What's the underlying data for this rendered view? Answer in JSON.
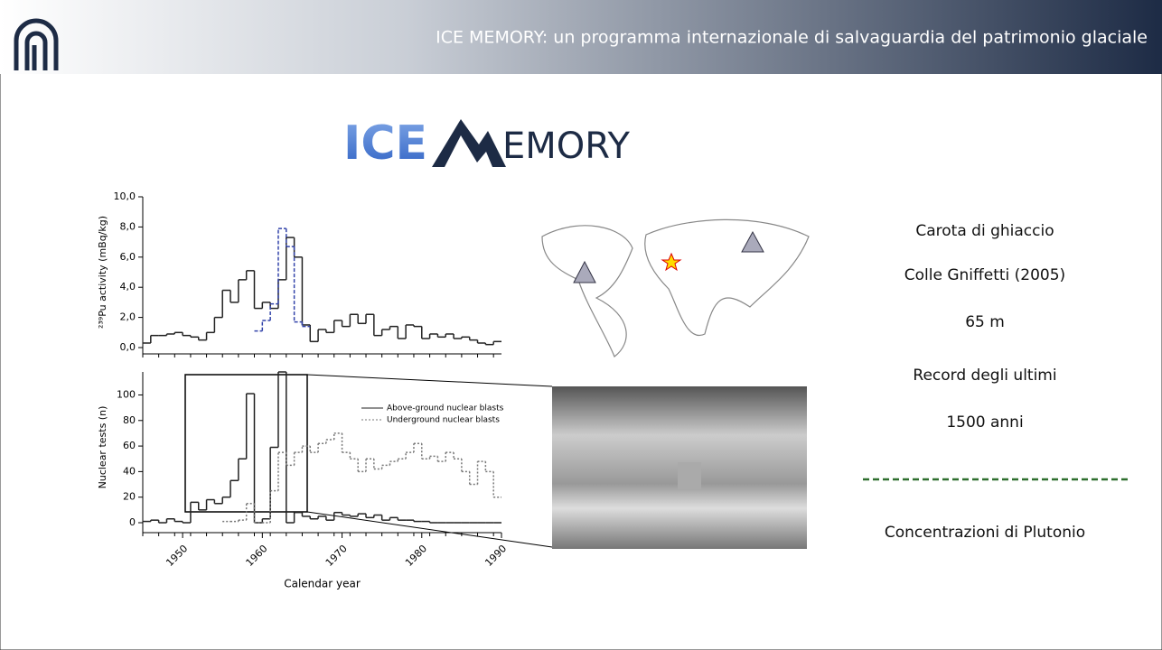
{
  "header": {
    "title": "ICE MEMORY: un programma internazionale di salvaguardia del patrimonio glaciale"
  },
  "logo": {
    "part1": "ICE",
    "part2": "EMORY"
  },
  "chart_data": [
    {
      "type": "step",
      "ylabel": "²³⁹Pu activity (mBq/kg)",
      "xlim": [
        1945,
        1990
      ],
      "ylim": [
        0,
        10
      ],
      "yticks": [
        {
          "value": 0,
          "label": "0,0"
        },
        {
          "value": 2,
          "label": "2,0"
        },
        {
          "value": 4,
          "label": "4,0"
        },
        {
          "value": 6,
          "label": "6,0"
        },
        {
          "value": 8,
          "label": "8,0"
        },
        {
          "value": 10,
          "label": "10,0"
        }
      ],
      "series": [
        {
          "color": "#222222",
          "style": "solid",
          "x": [
            1945,
            1946,
            1947,
            1948,
            1949,
            1950,
            1951,
            1952,
            1953,
            1954,
            1955,
            1956,
            1957,
            1958,
            1959,
            1960,
            1961,
            1962,
            1963,
            1964,
            1965,
            1966,
            1967,
            1968,
            1969,
            1970,
            1971,
            1972,
            1973,
            1974,
            1975,
            1976,
            1977,
            1978,
            1979,
            1980,
            1981,
            1982,
            1983,
            1984,
            1985,
            1986,
            1987,
            1988,
            1989
          ],
          "values": [
            0.3,
            0.8,
            0.8,
            0.9,
            1.0,
            0.8,
            0.7,
            0.5,
            1.0,
            2.0,
            3.8,
            3.0,
            4.5,
            5.1,
            2.6,
            3.0,
            2.6,
            4.5,
            7.3,
            6.0,
            1.5,
            0.4,
            1.2,
            1.0,
            1.8,
            1.4,
            2.2,
            1.6,
            2.2,
            0.8,
            1.2,
            1.4,
            0.6,
            1.5,
            1.4,
            0.6,
            0.9,
            0.7,
            0.9,
            0.6,
            0.7,
            0.5,
            0.3,
            0.2,
            0.4
          ]
        },
        {
          "color": "#3344aa",
          "style": "dashed",
          "x": [
            1959,
            1960,
            1961,
            1962,
            1963,
            1964,
            1965
          ],
          "values": [
            1.1,
            1.8,
            2.9,
            7.9,
            6.7,
            1.7,
            1.4
          ]
        }
      ]
    },
    {
      "type": "step",
      "ylabel": "Nuclear tests (n)",
      "xlabel": "Calendar year",
      "xlim": [
        1945,
        1990
      ],
      "ylim": [
        0,
        118
      ],
      "yticks": [
        0,
        20,
        40,
        60,
        80,
        100
      ],
      "xticks": [
        1950,
        1960,
        1970,
        1980,
        1990
      ],
      "series": [
        {
          "name": "Above-ground nuclear blasts",
          "color": "#222222",
          "style": "solid",
          "x": [
            1945,
            1946,
            1947,
            1948,
            1949,
            1950,
            1951,
            1952,
            1953,
            1954,
            1955,
            1956,
            1957,
            1958,
            1959,
            1960,
            1961,
            1962,
            1963,
            1964,
            1965,
            1966,
            1967,
            1968,
            1969,
            1970,
            1971,
            1972,
            1973,
            1974,
            1975,
            1976,
            1977,
            1978,
            1979,
            1980,
            1981,
            1982,
            1983,
            1984,
            1985,
            1986,
            1987,
            1988,
            1989
          ],
          "values": [
            1,
            2,
            0,
            3,
            1,
            0,
            16,
            10,
            18,
            15,
            20,
            33,
            50,
            101,
            0,
            3,
            59,
            118,
            0,
            8,
            5,
            3,
            5,
            2,
            8,
            6,
            5,
            7,
            4,
            6,
            2,
            4,
            2,
            2,
            1,
            1,
            0,
            0,
            0,
            0,
            0,
            0,
            0,
            0,
            0
          ]
        },
        {
          "name": "Underground nuclear blasts",
          "color": "#777777",
          "style": "dotted",
          "x": [
            1955,
            1956,
            1957,
            1958,
            1959,
            1960,
            1961,
            1962,
            1963,
            1964,
            1965,
            1966,
            1967,
            1968,
            1969,
            1970,
            1971,
            1972,
            1973,
            1974,
            1975,
            1976,
            1977,
            1978,
            1979,
            1980,
            1981,
            1982,
            1983,
            1984,
            1985,
            1986,
            1987,
            1988,
            1989
          ],
          "values": [
            1,
            1,
            2,
            15,
            0,
            0,
            25,
            55,
            45,
            55,
            60,
            55,
            62,
            65,
            70,
            55,
            50,
            40,
            50,
            42,
            45,
            48,
            50,
            55,
            62,
            50,
            52,
            48,
            55,
            50,
            40,
            30,
            48,
            40,
            20
          ]
        }
      ]
    }
  ],
  "side": {
    "line1": "Carota di ghiaccio",
    "line2": "Colle Gniffetti (2005)",
    "line3": "65 m",
    "line4": "Record degli ultimi",
    "line5": "1500 anni",
    "line6": "Concentrazioni di Plutonio"
  }
}
